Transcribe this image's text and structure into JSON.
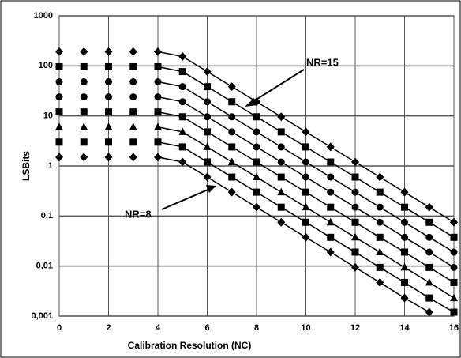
{
  "chart_data": {
    "type": "line",
    "x_label": "Calibration Resolution (NC)",
    "y_label": "LSBits",
    "annotations": [
      "NR=15",
      "NR=8"
    ],
    "x": [
      0,
      1,
      2,
      3,
      4,
      5,
      6,
      7,
      8,
      9,
      10,
      11,
      12,
      13,
      14,
      15,
      16
    ],
    "xlim": [
      0,
      16
    ],
    "xticks": [
      0,
      2,
      4,
      6,
      8,
      10,
      12,
      14,
      16
    ],
    "ylim": [
      0.001,
      1000
    ],
    "log_y": true,
    "grid": true,
    "yticks": [
      {
        "value": 0.001,
        "label": "0,001"
      },
      {
        "value": 0.01,
        "label": "0,01"
      },
      {
        "value": 0.1,
        "label": "0,1"
      },
      1,
      10,
      100,
      1000
    ],
    "series": [
      {
        "color": "#000",
        "marker": "diamond",
        "values": [
          1.5,
          1.5,
          1.5,
          1.5,
          1.5,
          1.2,
          0.6,
          0.3,
          0.15,
          0.075,
          0.0375,
          0.019,
          0.0094,
          0.0047,
          0.0023,
          0.0012,
          null
        ]
      },
      {
        "color": "#000",
        "marker": "square",
        "values": [
          3,
          3,
          3,
          3,
          3,
          2.4,
          1.2,
          0.6,
          0.3,
          0.15,
          0.075,
          0.0375,
          0.019,
          0.0094,
          0.0047,
          0.0023,
          0.0012
        ]
      },
      {
        "color": "#000",
        "marker": "triangle",
        "values": [
          6,
          6,
          6,
          6,
          6,
          4.8,
          2.4,
          1.2,
          0.6,
          0.3,
          0.15,
          0.075,
          0.0375,
          0.019,
          0.0094,
          0.0047,
          0.0023
        ]
      },
      {
        "color": "#000",
        "marker": "square",
        "values": [
          12,
          12,
          12,
          12,
          12,
          9.6,
          4.8,
          2.4,
          1.2,
          0.6,
          0.3,
          0.15,
          0.075,
          0.0375,
          0.019,
          0.0094,
          0.0047
        ]
      },
      {
        "color": "#000",
        "marker": "circle",
        "values": [
          24,
          24,
          24,
          24,
          24,
          19.2,
          9.6,
          4.8,
          2.4,
          1.2,
          0.6,
          0.3,
          0.15,
          0.075,
          0.0375,
          0.019,
          0.0094
        ]
      },
      {
        "color": "#000",
        "marker": "circle",
        "values": [
          48,
          48,
          48,
          48,
          48,
          38.4,
          19.2,
          9.6,
          4.8,
          2.4,
          1.2,
          0.6,
          0.3,
          0.15,
          0.075,
          0.0375,
          0.019
        ]
      },
      {
        "color": "#000",
        "marker": "square",
        "values": [
          96,
          96,
          96,
          96,
          96,
          76.8,
          38.4,
          19.2,
          9.6,
          4.8,
          2.4,
          1.2,
          0.6,
          0.3,
          0.15,
          0.075,
          0.0375
        ]
      },
      {
        "color": "#000",
        "marker": "diamond",
        "values": [
          192,
          192,
          192,
          192,
          192,
          153.6,
          76.8,
          38.4,
          19.2,
          9.6,
          4.8,
          2.4,
          1.2,
          0.6,
          0.3,
          0.15,
          0.075
        ]
      }
    ]
  }
}
